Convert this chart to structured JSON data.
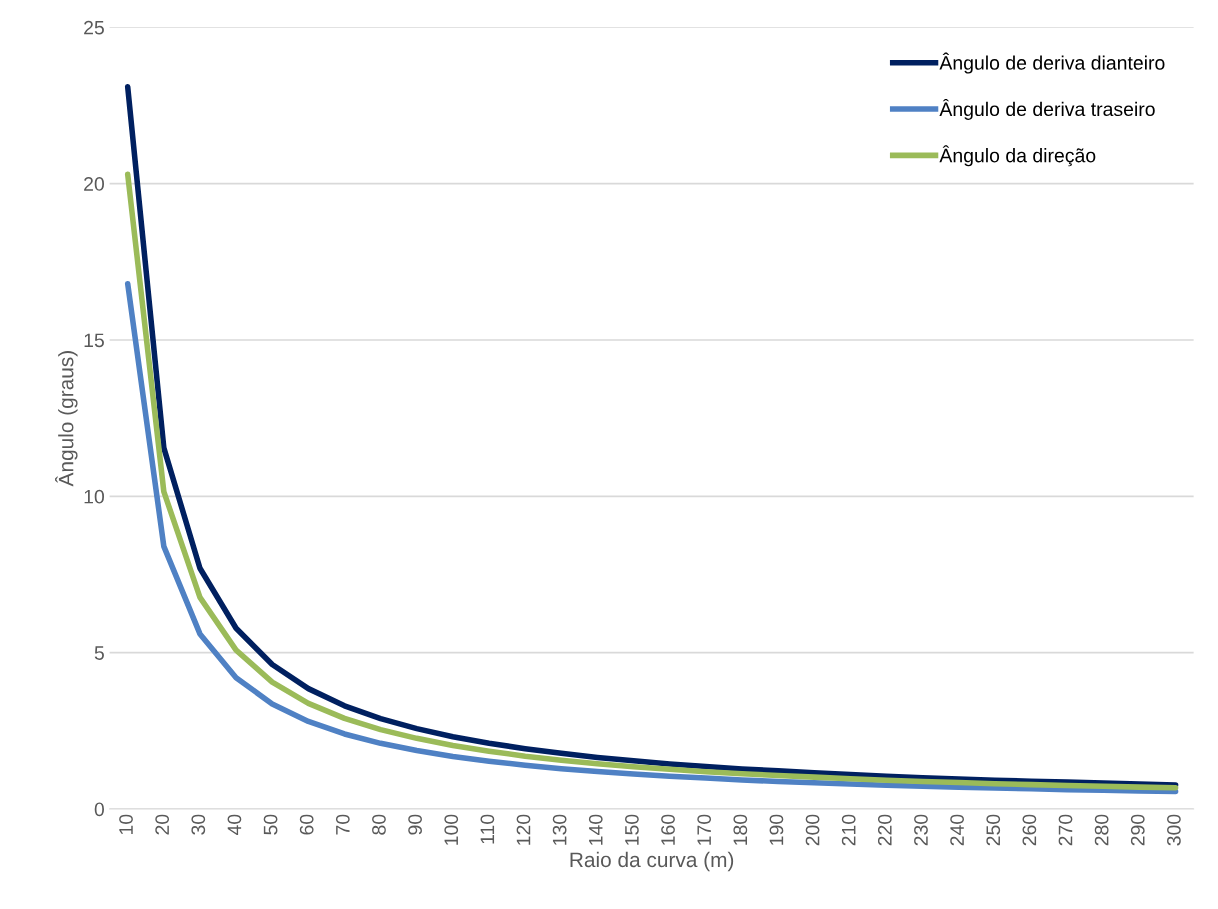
{
  "chart_data": {
    "type": "line",
    "xlabel": "Raio da curva (m)",
    "ylabel": "Ângulo (graus)",
    "categories": [
      "10",
      "20",
      "30",
      "40",
      "50",
      "60",
      "70",
      "80",
      "90",
      "100",
      "110",
      "120",
      "130",
      "140",
      "150",
      "160",
      "170",
      "180",
      "190",
      "200",
      "210",
      "220",
      "230",
      "240",
      "250",
      "260",
      "270",
      "280",
      "290",
      "300"
    ],
    "series": [
      {
        "name": "Ângulo de deriva dianteiro",
        "color": "#002060",
        "values": [
          23.1,
          11.55,
          7.7,
          5.78,
          4.62,
          3.85,
          3.3,
          2.89,
          2.57,
          2.31,
          2.1,
          1.93,
          1.78,
          1.65,
          1.54,
          1.44,
          1.36,
          1.28,
          1.22,
          1.16,
          1.1,
          1.05,
          1.0,
          0.96,
          0.92,
          0.89,
          0.86,
          0.83,
          0.8,
          0.77
        ]
      },
      {
        "name": "Ângulo de deriva traseiro",
        "color": "#4f81c4",
        "values": [
          16.8,
          8.4,
          5.6,
          4.2,
          3.36,
          2.8,
          2.4,
          2.1,
          1.87,
          1.68,
          1.53,
          1.4,
          1.29,
          1.2,
          1.12,
          1.05,
          0.99,
          0.93,
          0.88,
          0.84,
          0.8,
          0.76,
          0.73,
          0.7,
          0.67,
          0.65,
          0.62,
          0.6,
          0.58,
          0.56
        ]
      },
      {
        "name": "Ângulo da direção",
        "color": "#9bbb59",
        "values": [
          20.3,
          10.15,
          6.77,
          5.08,
          4.06,
          3.38,
          2.9,
          2.54,
          2.26,
          2.03,
          1.85,
          1.69,
          1.56,
          1.45,
          1.35,
          1.27,
          1.19,
          1.13,
          1.07,
          1.02,
          0.97,
          0.92,
          0.88,
          0.85,
          0.81,
          0.78,
          0.75,
          0.73,
          0.7,
          0.68
        ]
      }
    ],
    "ylim": [
      0,
      25
    ],
    "yticks": [
      0,
      5,
      10,
      15,
      20,
      25
    ],
    "grid": "y",
    "legend": "top right",
    "line_style": "solid",
    "marker": "none"
  }
}
